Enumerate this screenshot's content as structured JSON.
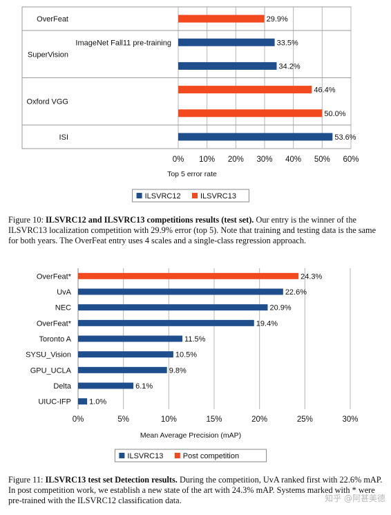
{
  "colors": {
    "ilsvrc12": "#1f4e8c",
    "ilsvrc13": "#f24a1e",
    "post": "#f24a1e"
  },
  "chart_data": [
    {
      "type": "bar",
      "orientation": "horizontal",
      "groups": [
        {
          "label": "OverFeat",
          "bars": [
            {
              "series": "ILSVRC13",
              "value": 29.9,
              "label": "29.9%"
            }
          ]
        },
        {
          "label": "SuperVision",
          "sublabel": "ImageNet Fall11 pre-training",
          "bars": [
            {
              "series": "ILSVRC12",
              "value": 33.5,
              "label": "33.5%"
            },
            {
              "series": "ILSVRC12",
              "value": 34.2,
              "label": "34.2%"
            }
          ]
        },
        {
          "label": "Oxford VGG",
          "bars": [
            {
              "series": "ILSVRC13",
              "value": 46.4,
              "label": "46.4%"
            },
            {
              "series": "ILSVRC13",
              "value": 50.0,
              "label": "50.0%"
            }
          ]
        },
        {
          "label": "ISI",
          "bars": [
            {
              "series": "ILSVRC12",
              "value": 53.6,
              "label": "53.6%"
            }
          ]
        }
      ],
      "xlabel": "Top 5 error rate",
      "xlim": [
        0,
        60
      ],
      "ticks": [
        "0%",
        "10%",
        "20%",
        "30%",
        "40%",
        "50%",
        "60%"
      ],
      "legend": [
        {
          "name": "ILSVRC12",
          "color": "#1f4e8c"
        },
        {
          "name": "ILSVRC13",
          "color": "#f24a1e"
        }
      ],
      "legend_position": "bottom",
      "grid": true
    },
    {
      "type": "bar",
      "orientation": "horizontal",
      "categories": [
        "OverFeat*",
        "UvA",
        "NEC",
        "OverFeat*",
        "Toronto A",
        "SYSU_Vision",
        "GPU_UCLA",
        "Delta",
        "UIUC-IFP"
      ],
      "values": [
        24.3,
        22.6,
        20.9,
        19.4,
        11.5,
        10.5,
        9.8,
        6.1,
        1.0
      ],
      "value_labels": [
        "24.3%",
        "22.6%",
        "20.9%",
        "19.4%",
        "11.5%",
        "10.5%",
        "9.8%",
        "6.1%",
        "1.0%"
      ],
      "series_of_bar": [
        "Post competition",
        "ILSVRC13",
        "ILSVRC13",
        "ILSVRC13",
        "ILSVRC13",
        "ILSVRC13",
        "ILSVRC13",
        "ILSVRC13",
        "ILSVRC13"
      ],
      "xlabel": "Mean Average Precision (mAP)",
      "xlim": [
        0,
        30
      ],
      "ticks": [
        "0%",
        "5%",
        "10%",
        "15%",
        "20%",
        "25%",
        "30%"
      ],
      "legend": [
        {
          "name": "ILSVRC13",
          "color": "#1f4e8c"
        },
        {
          "name": "Post competition",
          "color": "#f24a1e"
        }
      ],
      "legend_position": "bottom",
      "grid": true
    }
  ],
  "captions": {
    "fig10_prefix": "Figure 10: ",
    "fig10_bold": "ILSVRC12 and ILSVRC13 competitions results (test set).",
    "fig10_text": " Our entry is the winner of the ILSVRC13 localization competition with 29.9% error (top 5). Note that training and testing data is the same for both years. The OverFeat entry uses 4 scales and a single-class regression approach.",
    "fig11_prefix": "Figure 11: ",
    "fig11_bold": "ILSVRC13 test set Detection results.",
    "fig11_text": " During the competition, UvA ranked first with 22.6% mAP. In post competition work, we establish a new state of the art with 24.3% mAP. Systems marked with * were pre-trained with the ILSVRC12 classification data."
  },
  "watermark": "知乎 @阿甚美德"
}
